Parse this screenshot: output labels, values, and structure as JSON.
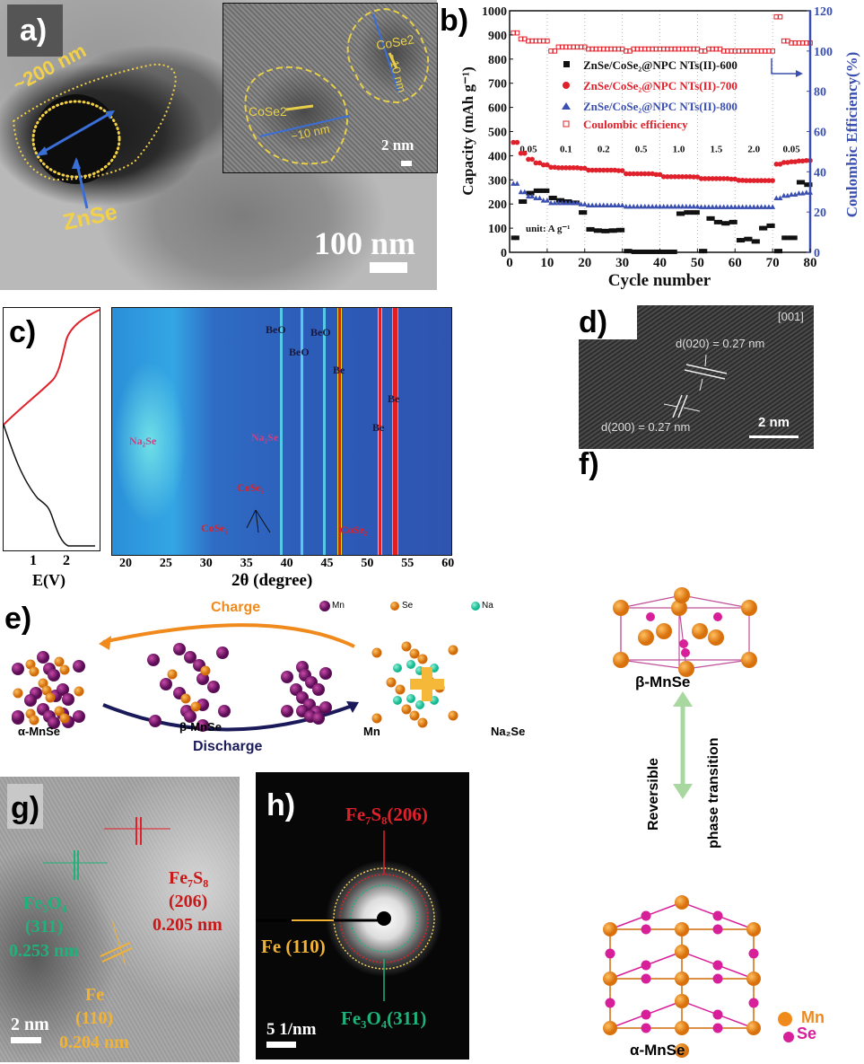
{
  "panels": {
    "a": {
      "label": "a)",
      "size_annotation": "~200 nm",
      "particle_label": "ZnSe",
      "scale_bar": "100 nm",
      "inset": {
        "particle_label_1": "CoSe2",
        "particle_label_2": "CoSe2",
        "size_1": "~10 nm",
        "size_2": "~10 nm",
        "scale_bar": "2 nm"
      }
    },
    "b": {
      "label": "b)"
    },
    "c": {
      "label": "c)",
      "left_xlabel": "E(V)",
      "left_ticks": [
        "1",
        "2"
      ],
      "xlabel": "2θ (degree)",
      "ticks": [
        "20",
        "25",
        "30",
        "35",
        "40",
        "45",
        "50",
        "55",
        "60"
      ],
      "annotations": {
        "beo1": "BeO",
        "beo2": "BeO",
        "beo3": "BeO",
        "be1": "Be",
        "be2": "Be",
        "be3": "Be",
        "na2se1": "Na₂Se",
        "na2se2": "Na₂Se",
        "cose2_a": "CoSe₂",
        "cose2_b": "CoSe₂",
        "cose2_c": "CoSe₂"
      }
    },
    "d": {
      "label": "d)",
      "zone_axis": "[001]",
      "spacing_top": "d(020) = 0.27 nm",
      "spacing_bottom": "d(200) = 0.27 nm",
      "scale_bar": "2 nm"
    },
    "e": {
      "label": "e)",
      "charge": "Charge",
      "discharge": "Discharge",
      "legend": {
        "mn": "Mn",
        "se": "Se",
        "na": "Na"
      },
      "species": {
        "alpha": "α-MnSe",
        "beta": "β-MnSe",
        "mn": "Mn",
        "na2se": "Na₂Se"
      }
    },
    "f": {
      "label": "f)",
      "beta": "β-MnSe",
      "alpha": "α-MnSe",
      "transition_1": "Reversible",
      "transition_2": "phase transition",
      "legend_mn": "Mn",
      "legend_se": "Se"
    },
    "g": {
      "label": "g)",
      "fe7s8": "Fe₇S₈",
      "fe7s8_hkl": "(206)",
      "fe7s8_d": "0.205 nm",
      "fe3o4": "Fe₃O₄",
      "fe3o4_hkl": "(311)",
      "fe3o4_d": "0.253 nm",
      "fe": "Fe",
      "fe_hkl": "(110)",
      "fe_d": "0.204 nm",
      "scale_bar": "2 nm"
    },
    "h": {
      "label": "h)",
      "ring_fe7s8": "Fe₇S₈(206)",
      "ring_fe": "Fe (110)",
      "ring_fe3o4": "Fe₃O₄(311)",
      "scale_bar": "5 1/nm"
    }
  },
  "colors": {
    "red": "#e0202a",
    "blue": "#3a4fb0",
    "black": "#111111",
    "gold": "#f2b233",
    "green": "#1fb27a",
    "magenta": "#d81f9a",
    "orange": "#f08a1c",
    "purple": "#7a1a6e"
  },
  "chart_data": {
    "type": "scatter",
    "xlabel": "Cycle number",
    "ylabel": "Capacity (mAh g⁻¹)",
    "y2label": "Coulombic Efficiency(%)",
    "xlim": [
      0,
      80
    ],
    "ylim": [
      0,
      1000
    ],
    "y2lim": [
      0,
      120
    ],
    "xticks": [
      0,
      10,
      20,
      30,
      40,
      50,
      60,
      70,
      80
    ],
    "yticks": [
      0,
      100,
      200,
      300,
      400,
      500,
      600,
      700,
      800,
      900,
      1000
    ],
    "y2ticks": [
      0,
      20,
      40,
      60,
      80,
      100,
      120
    ],
    "rate_unit": "unit: A g⁻¹",
    "rates": [
      {
        "label": "0.05",
        "x": 5
      },
      {
        "label": "0.1",
        "x": 15
      },
      {
        "label": "0.2",
        "x": 25
      },
      {
        "label": "0.5",
        "x": 35
      },
      {
        "label": "1.0",
        "x": 45
      },
      {
        "label": "1.5",
        "x": 55
      },
      {
        "label": "2.0",
        "x": 65
      },
      {
        "label": "0.05",
        "x": 75
      }
    ],
    "rate_boundaries": [
      10,
      20,
      30,
      40,
      50,
      60,
      70
    ],
    "x": [
      1,
      3,
      5,
      7,
      9,
      11,
      13,
      15,
      17,
      19,
      21,
      23,
      25,
      27,
      29,
      31,
      33,
      35,
      37,
      39,
      41,
      43,
      45,
      47,
      49,
      51,
      53,
      55,
      57,
      59,
      61,
      63,
      65,
      67,
      69,
      71,
      73,
      75,
      77,
      79
    ],
    "series": [
      {
        "name": "ZnSe/CoSe₂@NPC NTs(II)-600",
        "marker": "square",
        "color": "#111111",
        "axis": "left",
        "values": [
          60,
          210,
          245,
          255,
          255,
          225,
          215,
          210,
          205,
          165,
          95,
          90,
          88,
          90,
          92,
          5,
          2,
          2,
          2,
          2,
          2,
          2,
          160,
          165,
          165,
          5,
          140,
          125,
          120,
          125,
          50,
          55,
          45,
          100,
          110,
          5,
          60,
          60,
          290,
          280
        ]
      },
      {
        "name": "ZnSe/CoSe₂@NPC NTs(II)-700",
        "marker": "circle",
        "color": "#e0202a",
        "axis": "left",
        "values": [
          455,
          410,
          385,
          370,
          362,
          352,
          350,
          350,
          350,
          348,
          340,
          340,
          340,
          340,
          338,
          325,
          325,
          325,
          325,
          322,
          313,
          313,
          313,
          313,
          312,
          305,
          305,
          305,
          305,
          303,
          298,
          297,
          297,
          297,
          297,
          365,
          372,
          375,
          378,
          380
        ]
      },
      {
        "name": "ZnSe/CoSe₂@NPC NTs(II)-800",
        "marker": "triangle",
        "color": "#3a4fb0",
        "axis": "left",
        "values": [
          285,
          250,
          232,
          225,
          215,
          205,
          205,
          205,
          205,
          200,
          195,
          195,
          195,
          195,
          195,
          190,
          190,
          190,
          190,
          190,
          190,
          190,
          190,
          190,
          190,
          188,
          188,
          188,
          188,
          188,
          188,
          188,
          188,
          188,
          188,
          225,
          235,
          240,
          245,
          248
        ]
      },
      {
        "name": "Coulombic efficiency",
        "marker": "open-square",
        "color": "#e0202a",
        "axis": "right",
        "values": [
          109,
          106,
          105,
          105,
          105,
          100,
          102,
          102,
          102,
          102,
          101,
          101,
          101,
          101,
          101,
          100,
          101,
          101,
          101,
          101,
          101,
          101,
          101,
          101,
          101,
          100,
          101,
          101,
          100,
          100,
          100,
          100,
          100,
          100,
          100,
          117,
          105,
          104,
          104,
          104
        ]
      }
    ],
    "legend_position": "top-center"
  }
}
